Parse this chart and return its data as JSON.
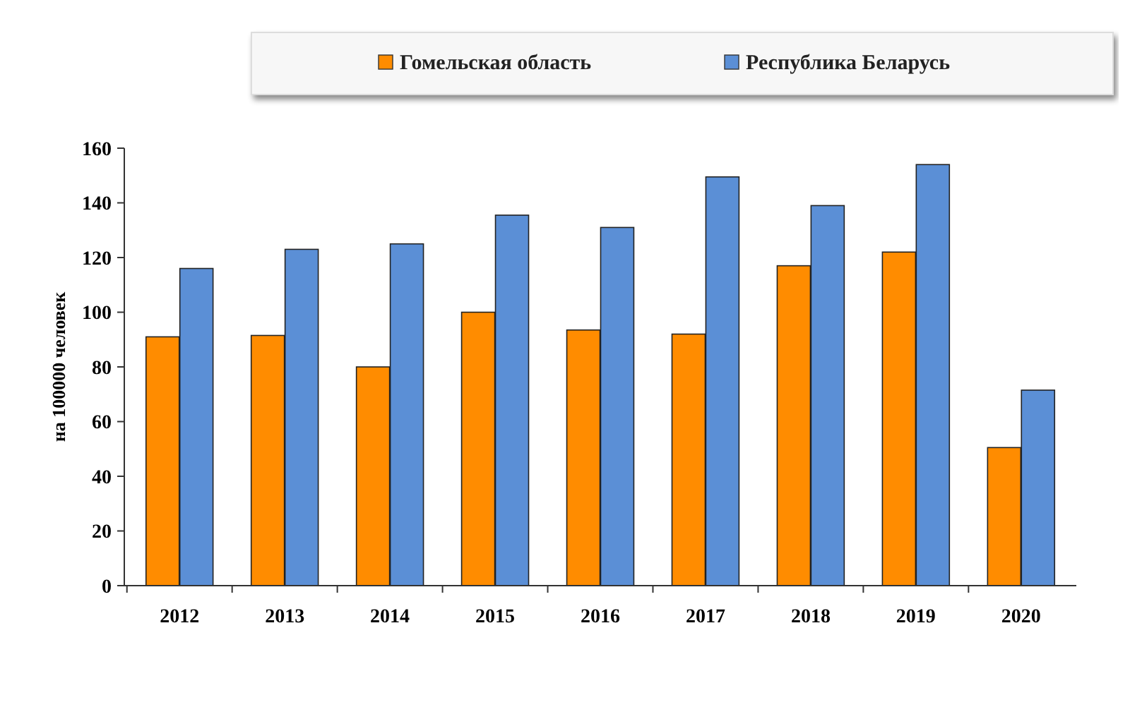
{
  "chart_data": {
    "type": "bar",
    "ylabel": "на 100000 человек",
    "categories": [
      "2012",
      "2013",
      "2014",
      "2015",
      "2016",
      "2017",
      "2018",
      "2019",
      "2020"
    ],
    "series": [
      {
        "name": "Гомельская область",
        "color": "#ff8c00",
        "values": [
          91,
          91.5,
          80,
          100,
          93.5,
          92,
          117,
          122,
          50.5
        ]
      },
      {
        "name": "Республика Беларусь",
        "color": "#5b8fd6",
        "values": [
          116,
          123,
          125,
          135.5,
          131,
          149.5,
          139,
          154,
          71.5
        ]
      }
    ],
    "ylim": [
      0,
      160
    ],
    "yticks": [
      0,
      20,
      40,
      60,
      80,
      100,
      120,
      140,
      160
    ],
    "grid": false,
    "legend": "top"
  }
}
